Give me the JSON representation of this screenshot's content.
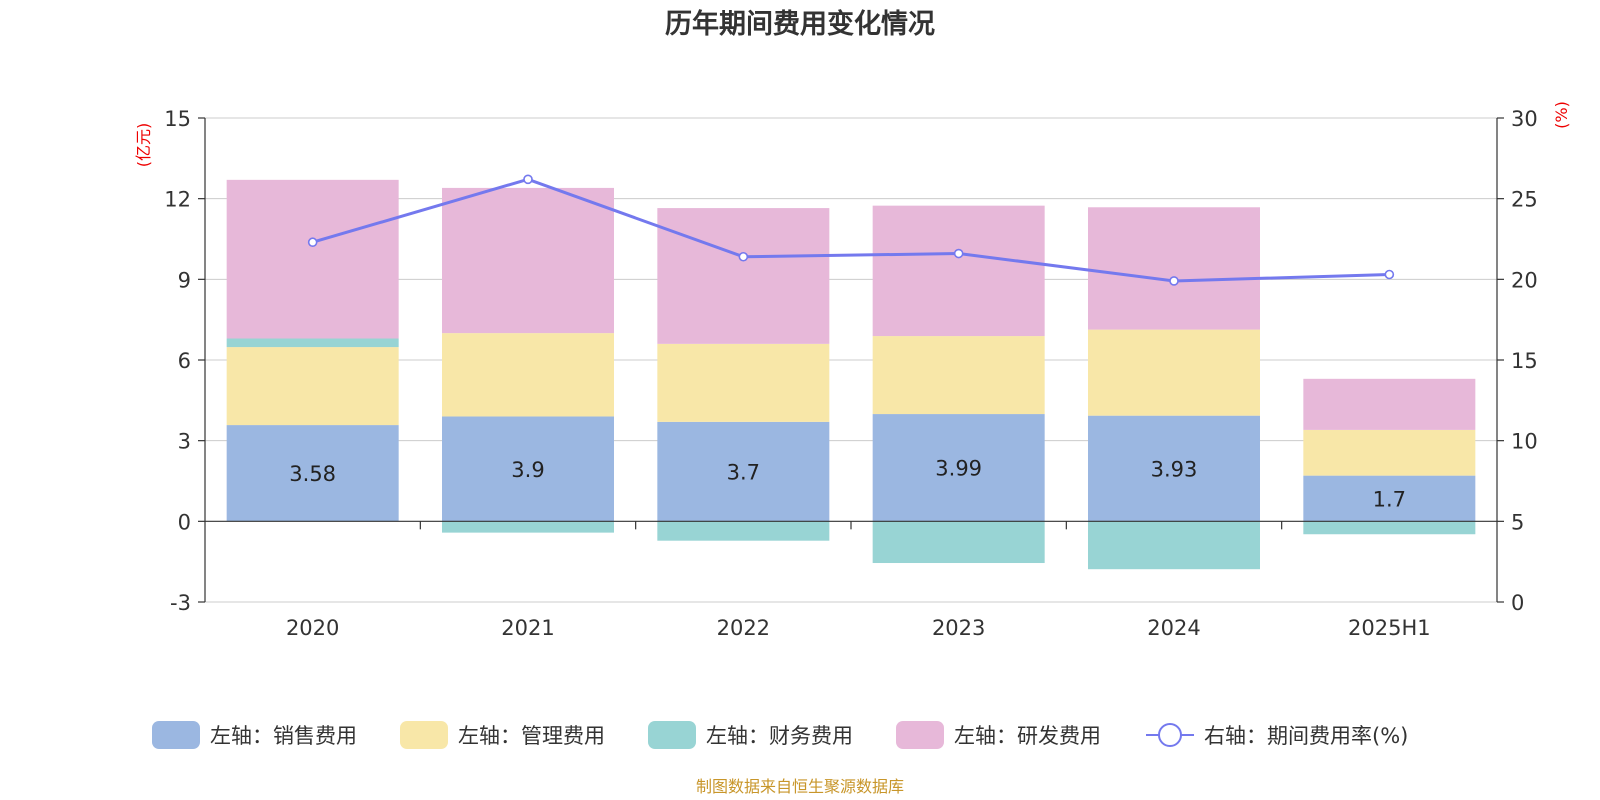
{
  "chart_data": {
    "type": "bar",
    "title": "历年期间费用变化情况",
    "categories": [
      "2020",
      "2021",
      "2022",
      "2023",
      "2024",
      "2025H1"
    ],
    "left_axis": {
      "unit": "(亿元)",
      "ylim": [
        -3,
        15
      ],
      "ticks": [
        -3,
        0,
        3,
        6,
        9,
        12,
        15
      ]
    },
    "right_axis": {
      "unit": "(%)",
      "ylim": [
        0,
        30
      ],
      "ticks": [
        0,
        5,
        10,
        15,
        20,
        25,
        30
      ]
    },
    "series": [
      {
        "name": "左轴：销售费用",
        "type": "bar",
        "axis": "left",
        "color": "#9bb7e1",
        "values": [
          3.58,
          3.9,
          3.7,
          3.99,
          3.93,
          1.7
        ],
        "show_labels": true
      },
      {
        "name": "左轴：管理费用",
        "type": "bar",
        "axis": "left",
        "color": "#f8e7a8",
        "values": [
          2.9,
          3.1,
          2.9,
          2.9,
          3.2,
          1.7
        ]
      },
      {
        "name": "左轴：财务费用",
        "type": "bar",
        "axis": "left",
        "color": "#98d4d4",
        "values": [
          0.32,
          -0.42,
          -0.72,
          -1.55,
          -1.78,
          -0.48
        ]
      },
      {
        "name": "左轴：研发费用",
        "type": "bar",
        "axis": "left",
        "color": "#e7b8d9",
        "values": [
          5.9,
          5.4,
          5.05,
          4.85,
          4.55,
          1.9
        ]
      },
      {
        "name": "右轴：期间费用率(%)",
        "type": "line",
        "axis": "right",
        "color": "#7479ee",
        "values": [
          22.3,
          26.2,
          21.4,
          21.6,
          19.9,
          20.3
        ]
      }
    ],
    "grid": true,
    "legend_position": "bottom"
  },
  "source_text": "制图数据来自恒生聚源数据库"
}
